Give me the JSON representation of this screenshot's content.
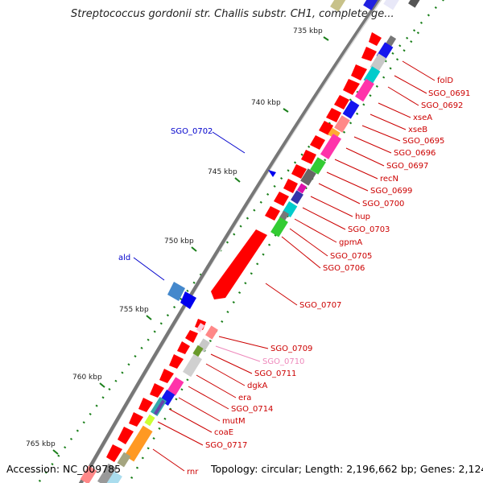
{
  "header": {
    "title": "Streptococcus gordonii str. Challis substr. CH1, complete ge..."
  },
  "footer": {
    "accession": "Accession: NC_009785",
    "summary": "Topology: circular; Length: 2,196,662 bp; Genes: 2,124"
  },
  "ruler": {
    "ticks": [
      {
        "label": "735 kbp"
      },
      {
        "label": "740 kbp"
      },
      {
        "label": "745 kbp"
      },
      {
        "label": "750 kbp"
      },
      {
        "label": "755 kbp"
      },
      {
        "label": "760 kbp"
      },
      {
        "label": "765 kbp"
      }
    ]
  },
  "genes": {
    "left_labels": [
      {
        "label": "SGO_0702",
        "color": "#0000cc"
      },
      {
        "label": "ald",
        "color": "#0000cc"
      }
    ],
    "right_labels": [
      {
        "label": "folD",
        "color": "#cc0000"
      },
      {
        "label": "SGO_0691",
        "color": "#cc0000"
      },
      {
        "label": "SGO_0692",
        "color": "#cc0000"
      },
      {
        "label": "xseA",
        "color": "#cc0000"
      },
      {
        "label": "xseB",
        "color": "#cc0000"
      },
      {
        "label": "SGO_0695",
        "color": "#cc0000"
      },
      {
        "label": "SGO_0696",
        "color": "#cc0000"
      },
      {
        "label": "SGO_0697",
        "color": "#cc0000"
      },
      {
        "label": "recN",
        "color": "#cc0000"
      },
      {
        "label": "SGO_0699",
        "color": "#cc0000"
      },
      {
        "label": "SGO_0700",
        "color": "#cc0000"
      },
      {
        "label": "hup",
        "color": "#cc0000"
      },
      {
        "label": "SGO_0703",
        "color": "#cc0000"
      },
      {
        "label": "gpmA",
        "color": "#cc0000"
      },
      {
        "label": "SGO_0705",
        "color": "#cc0000"
      },
      {
        "label": "SGO_0706",
        "color": "#cc0000"
      },
      {
        "label": "SGO_0707",
        "color": "#cc0000"
      },
      {
        "label": "SGO_0709",
        "color": "#cc0000"
      },
      {
        "label": "SGO_0710",
        "color": "#ee88bb"
      },
      {
        "label": "SGO_0711",
        "color": "#cc0000"
      },
      {
        "label": "dgkA",
        "color": "#cc0000"
      },
      {
        "label": "era",
        "color": "#cc0000"
      },
      {
        "label": "SGO_0714",
        "color": "#cc0000"
      },
      {
        "label": "mutM",
        "color": "#cc0000"
      },
      {
        "label": "coaE",
        "color": "#cc0000"
      },
      {
        "label": "SGO_0717",
        "color": "#cc0000"
      },
      {
        "label": "rnr",
        "color": "#cc0000"
      }
    ]
  },
  "colors": {
    "forward_strand": "#ff0000",
    "reverse_strand": "#0000ee",
    "backbone": "#777777",
    "tick": "#1a7f1a"
  }
}
